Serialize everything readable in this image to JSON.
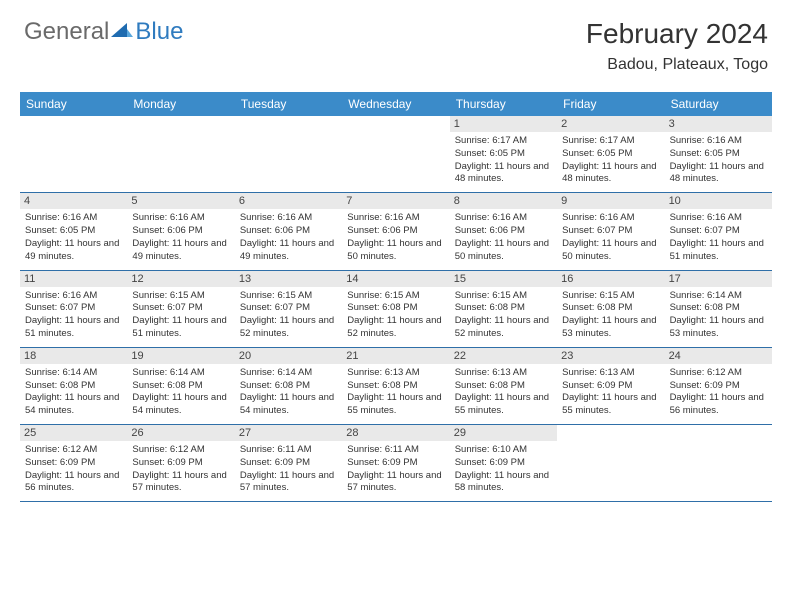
{
  "logo": {
    "general": "General",
    "blue": "Blue"
  },
  "title": "February 2024",
  "location": "Badou, Plateaux, Togo",
  "colors": {
    "header_bg": "#3b8bc9",
    "header_text": "#ffffff",
    "date_bg": "#e9e9e9",
    "row_border": "#2f6fa8",
    "logo_gray": "#6a6a6a",
    "logo_blue": "#2f7bbf",
    "background": "#ffffff"
  },
  "fonts": {
    "title_size": 28,
    "location_size": 16,
    "dayheader_size": 12,
    "cell_size": 9.5
  },
  "day_names": [
    "Sunday",
    "Monday",
    "Tuesday",
    "Wednesday",
    "Thursday",
    "Friday",
    "Saturday"
  ],
  "weeks": [
    [
      null,
      null,
      null,
      null,
      {
        "d": "1",
        "sr": "6:17 AM",
        "ss": "6:05 PM",
        "dl": "11 hours and 48 minutes."
      },
      {
        "d": "2",
        "sr": "6:17 AM",
        "ss": "6:05 PM",
        "dl": "11 hours and 48 minutes."
      },
      {
        "d": "3",
        "sr": "6:16 AM",
        "ss": "6:05 PM",
        "dl": "11 hours and 48 minutes."
      }
    ],
    [
      {
        "d": "4",
        "sr": "6:16 AM",
        "ss": "6:05 PM",
        "dl": "11 hours and 49 minutes."
      },
      {
        "d": "5",
        "sr": "6:16 AM",
        "ss": "6:06 PM",
        "dl": "11 hours and 49 minutes."
      },
      {
        "d": "6",
        "sr": "6:16 AM",
        "ss": "6:06 PM",
        "dl": "11 hours and 49 minutes."
      },
      {
        "d": "7",
        "sr": "6:16 AM",
        "ss": "6:06 PM",
        "dl": "11 hours and 50 minutes."
      },
      {
        "d": "8",
        "sr": "6:16 AM",
        "ss": "6:06 PM",
        "dl": "11 hours and 50 minutes."
      },
      {
        "d": "9",
        "sr": "6:16 AM",
        "ss": "6:07 PM",
        "dl": "11 hours and 50 minutes."
      },
      {
        "d": "10",
        "sr": "6:16 AM",
        "ss": "6:07 PM",
        "dl": "11 hours and 51 minutes."
      }
    ],
    [
      {
        "d": "11",
        "sr": "6:16 AM",
        "ss": "6:07 PM",
        "dl": "11 hours and 51 minutes."
      },
      {
        "d": "12",
        "sr": "6:15 AM",
        "ss": "6:07 PM",
        "dl": "11 hours and 51 minutes."
      },
      {
        "d": "13",
        "sr": "6:15 AM",
        "ss": "6:07 PM",
        "dl": "11 hours and 52 minutes."
      },
      {
        "d": "14",
        "sr": "6:15 AM",
        "ss": "6:08 PM",
        "dl": "11 hours and 52 minutes."
      },
      {
        "d": "15",
        "sr": "6:15 AM",
        "ss": "6:08 PM",
        "dl": "11 hours and 52 minutes."
      },
      {
        "d": "16",
        "sr": "6:15 AM",
        "ss": "6:08 PM",
        "dl": "11 hours and 53 minutes."
      },
      {
        "d": "17",
        "sr": "6:14 AM",
        "ss": "6:08 PM",
        "dl": "11 hours and 53 minutes."
      }
    ],
    [
      {
        "d": "18",
        "sr": "6:14 AM",
        "ss": "6:08 PM",
        "dl": "11 hours and 54 minutes."
      },
      {
        "d": "19",
        "sr": "6:14 AM",
        "ss": "6:08 PM",
        "dl": "11 hours and 54 minutes."
      },
      {
        "d": "20",
        "sr": "6:14 AM",
        "ss": "6:08 PM",
        "dl": "11 hours and 54 minutes."
      },
      {
        "d": "21",
        "sr": "6:13 AM",
        "ss": "6:08 PM",
        "dl": "11 hours and 55 minutes."
      },
      {
        "d": "22",
        "sr": "6:13 AM",
        "ss": "6:08 PM",
        "dl": "11 hours and 55 minutes."
      },
      {
        "d": "23",
        "sr": "6:13 AM",
        "ss": "6:09 PM",
        "dl": "11 hours and 55 minutes."
      },
      {
        "d": "24",
        "sr": "6:12 AM",
        "ss": "6:09 PM",
        "dl": "11 hours and 56 minutes."
      }
    ],
    [
      {
        "d": "25",
        "sr": "6:12 AM",
        "ss": "6:09 PM",
        "dl": "11 hours and 56 minutes."
      },
      {
        "d": "26",
        "sr": "6:12 AM",
        "ss": "6:09 PM",
        "dl": "11 hours and 57 minutes."
      },
      {
        "d": "27",
        "sr": "6:11 AM",
        "ss": "6:09 PM",
        "dl": "11 hours and 57 minutes."
      },
      {
        "d": "28",
        "sr": "6:11 AM",
        "ss": "6:09 PM",
        "dl": "11 hours and 57 minutes."
      },
      {
        "d": "29",
        "sr": "6:10 AM",
        "ss": "6:09 PM",
        "dl": "11 hours and 58 minutes."
      },
      null,
      null
    ]
  ],
  "labels": {
    "sunrise": "Sunrise: ",
    "sunset": "Sunset: ",
    "daylight": "Daylight: "
  }
}
